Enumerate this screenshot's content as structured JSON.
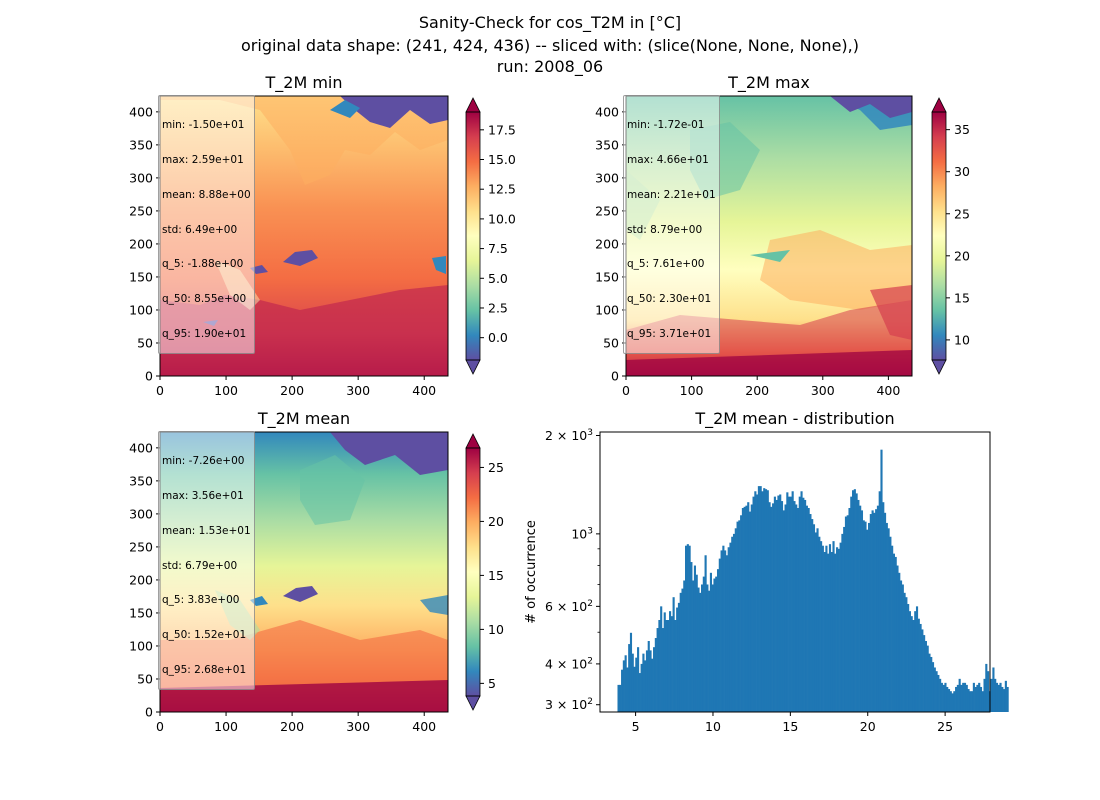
{
  "figure": {
    "title_lines": [
      "Sanity-Check for cos_T2M in [°C]",
      "original data shape: (241, 424, 436) -- sliced with: (slice(None, None, None),)",
      "run: 2008_06"
    ]
  },
  "chart_data": [
    {
      "type": "heatmap",
      "title": "T_2M min",
      "colormap": "Spectral_r",
      "xlim": [
        0,
        436
      ],
      "ylim": [
        0,
        424
      ],
      "x_ticks": [
        0,
        100,
        200,
        300,
        400
      ],
      "y_ticks": [
        0,
        50,
        100,
        150,
        200,
        250,
        300,
        350,
        400
      ],
      "colorbar": {
        "min": -1.88,
        "max": 19.0,
        "extend": "both",
        "ticks": [
          "0.0",
          "2.5",
          "5.0",
          "7.5",
          "10.0",
          "12.5",
          "15.0",
          "17.5"
        ],
        "tick_values": [
          0.0,
          2.5,
          5.0,
          7.5,
          10.0,
          12.5,
          15.0,
          17.5
        ]
      },
      "stats": [
        "min: -1.50e+01",
        "max: 2.59e+01",
        "mean: 8.88e+00",
        "std: 6.49e+00",
        "q_5: -1.88e+00",
        "q_50: 8.55e+00",
        "q_95: 1.90e+01"
      ]
    },
    {
      "type": "heatmap",
      "title": "T_2M max",
      "colormap": "Spectral_r",
      "xlim": [
        0,
        436
      ],
      "ylim": [
        0,
        424
      ],
      "x_ticks": [
        0,
        100,
        200,
        300,
        400
      ],
      "y_ticks": [
        0,
        50,
        100,
        150,
        200,
        250,
        300,
        350,
        400
      ],
      "colorbar": {
        "min": 7.61,
        "max": 37.1,
        "extend": "both",
        "ticks": [
          "10",
          "15",
          "20",
          "25",
          "30",
          "35"
        ],
        "tick_values": [
          10,
          15,
          20,
          25,
          30,
          35
        ]
      },
      "stats": [
        "min: -1.72e-01",
        "max: 4.66e+01",
        "mean: 2.21e+01",
        "std: 8.79e+00",
        "q_5: 7.61e+00",
        "q_50: 2.30e+01",
        "q_95: 3.71e+01"
      ]
    },
    {
      "type": "heatmap",
      "title": "T_2M mean",
      "colormap": "Spectral_r",
      "xlim": [
        0,
        436
      ],
      "ylim": [
        0,
        424
      ],
      "x_ticks": [
        0,
        100,
        200,
        300,
        400
      ],
      "y_ticks": [
        0,
        50,
        100,
        150,
        200,
        250,
        300,
        350,
        400
      ],
      "colorbar": {
        "min": 3.83,
        "max": 26.8,
        "extend": "both",
        "ticks": [
          "5",
          "10",
          "15",
          "20",
          "25"
        ],
        "tick_values": [
          5,
          10,
          15,
          20,
          25
        ]
      },
      "stats": [
        "min: -7.26e+00",
        "max: 3.56e+01",
        "mean: 1.53e+01",
        "std: 6.79e+00",
        "q_5: 3.83e+00",
        "q_50: 1.52e+01",
        "q_95: 2.68e+01"
      ]
    },
    {
      "type": "bar",
      "title": "T_2M mean - distribution",
      "ylabel": "# of occurrence",
      "xlabel": "",
      "y_scale": "log",
      "color": "#1f77b4",
      "xlim": [
        2.7,
        27.9
      ],
      "ylim": [
        285,
        2050
      ],
      "x_ticks": [
        5,
        10,
        15,
        20,
        25
      ],
      "y_tick_labels": [
        {
          "value": 300,
          "base": "3 × 10",
          "exp": "2"
        },
        {
          "value": 400,
          "base": "4 × 10",
          "exp": "2"
        },
        {
          "value": 600,
          "base": "6 × 10",
          "exp": "2"
        },
        {
          "value": 1000,
          "base": "10",
          "exp": "3"
        },
        {
          "value": 2000,
          "base": "2 × 10",
          "exp": "3"
        }
      ],
      "y_minor_ticks": [
        500,
        700,
        800,
        900
      ],
      "bin_start": 3.83,
      "bin_width": 0.1148,
      "counts": [
        345,
        345,
        384,
        410,
        425,
        390,
        460,
        498,
        430,
        392,
        418,
        450,
        375,
        400,
        430,
        410,
        440,
        470,
        440,
        415,
        450,
        480,
        515,
        545,
        600,
        515,
        575,
        545,
        545,
        580,
        560,
        640,
        545,
        595,
        615,
        660,
        680,
        720,
        920,
        930,
        920,
        820,
        720,
        800,
        750,
        685,
        660,
        700,
        740,
        860,
        700,
        670,
        760,
        700,
        730,
        740,
        780,
        840,
        890,
        920,
        890,
        860,
        910,
        940,
        980,
        1000,
        1040,
        1090,
        1100,
        1140,
        1200,
        1210,
        1220,
        1250,
        1170,
        1230,
        1300,
        1350,
        1320,
        1400,
        1400,
        1350,
        1380,
        1370,
        1360,
        1250,
        1210,
        1240,
        1300,
        1270,
        1310,
        1320,
        1260,
        1180,
        1230,
        1340,
        1300,
        1300,
        1350,
        1260,
        1230,
        1200,
        1300,
        1350,
        1290,
        1270,
        1220,
        1200,
        1150,
        1110,
        1070,
        1010,
        1040,
        980,
        950,
        920,
        880,
        920,
        870,
        930,
        880,
        950,
        870,
        910,
        900,
        940,
        1000,
        1050,
        1130,
        1140,
        1200,
        1300,
        1360,
        1370,
        1330,
        1270,
        1220,
        1180,
        1100,
        1090,
        1030,
        1080,
        1150,
        1180,
        1160,
        1190,
        1220,
        1350,
        1810,
        1250,
        1160,
        1080,
        1040,
        980,
        920,
        870,
        850,
        800,
        760,
        720,
        700,
        660,
        640,
        610,
        580,
        560,
        545,
        580,
        600,
        550,
        530,
        510,
        490,
        470,
        455,
        430,
        420,
        405,
        390,
        380,
        370,
        360,
        350,
        345,
        350,
        340,
        335,
        330,
        325,
        330,
        340,
        345,
        360,
        345,
        350,
        350,
        345,
        335,
        330,
        330,
        350,
        340,
        345,
        350,
        340,
        330,
        360,
        400,
        380,
        330,
        360,
        390,
        360,
        350,
        345,
        350,
        340,
        335,
        355,
        340
      ]
    }
  ]
}
